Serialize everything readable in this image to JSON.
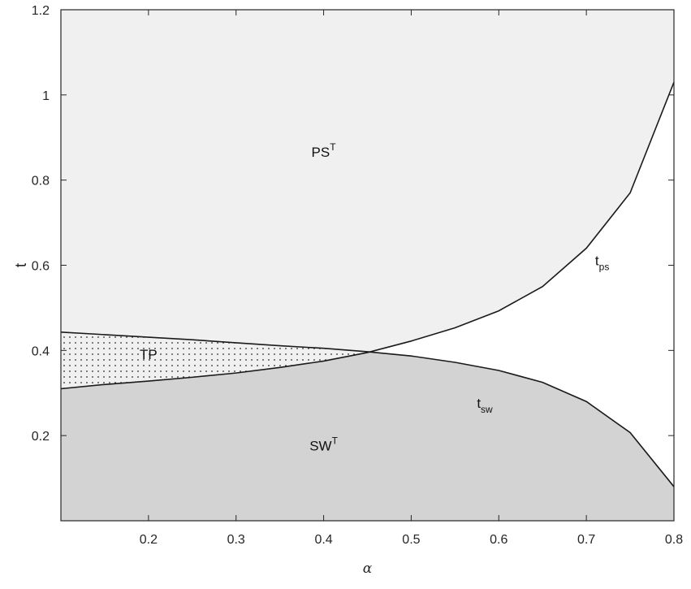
{
  "chart_data": {
    "type": "area",
    "title": "",
    "xlabel": "α",
    "ylabel": "t",
    "xlim": [
      0.1,
      0.8
    ],
    "ylim": [
      0,
      1.2
    ],
    "x_ticks": [
      "0.2",
      "0.3",
      "0.4",
      "0.5",
      "0.6",
      "0.7",
      "0.8"
    ],
    "y_ticks": [
      "0.2",
      "0.4",
      "0.6",
      "0.8",
      "1",
      "1.2"
    ],
    "grid": false,
    "series": [
      {
        "name": "t_ps",
        "x": [
          0.1,
          0.15,
          0.2,
          0.25,
          0.3,
          0.35,
          0.4,
          0.45,
          0.5,
          0.55,
          0.6,
          0.65,
          0.7,
          0.75,
          0.8
        ],
        "values": [
          0.31,
          0.32,
          0.328,
          0.337,
          0.347,
          0.36,
          0.375,
          0.395,
          0.422,
          0.453,
          0.493,
          0.55,
          0.64,
          0.77,
          1.03
        ]
      },
      {
        "name": "t_sw",
        "x": [
          0.1,
          0.15,
          0.2,
          0.25,
          0.3,
          0.35,
          0.4,
          0.45,
          0.5,
          0.55,
          0.6,
          0.65,
          0.7,
          0.75,
          0.8
        ],
        "values": [
          0.443,
          0.437,
          0.431,
          0.425,
          0.418,
          0.411,
          0.405,
          0.397,
          0.387,
          0.372,
          0.353,
          0.325,
          0.28,
          0.207,
          0.08
        ]
      }
    ],
    "regions": [
      {
        "id": "ps",
        "label": "PS",
        "superscript": "T",
        "at": [
          0.4,
          0.855
        ]
      },
      {
        "id": "tp",
        "label": "TP",
        "superscript": "",
        "at": [
          0.2,
          0.38
        ]
      },
      {
        "id": "sw",
        "label": "SW",
        "superscript": "T",
        "at": [
          0.4,
          0.165
        ]
      }
    ],
    "curve_labels": [
      {
        "id": "tps",
        "main": "t",
        "sub": "ps",
        "at": [
          0.71,
          0.6
        ]
      },
      {
        "id": "tsw",
        "main": "t",
        "sub": "sw",
        "at": [
          0.575,
          0.265
        ]
      }
    ],
    "colors": {
      "ps_region": "#f0f0f0",
      "sw_region": "#d3d3d3",
      "tp_region": "#f0f0f0",
      "tp_dots": "#2a2a2a",
      "curve": "#1a1a1a",
      "axis": "#262626",
      "background": "#ffffff"
    }
  }
}
